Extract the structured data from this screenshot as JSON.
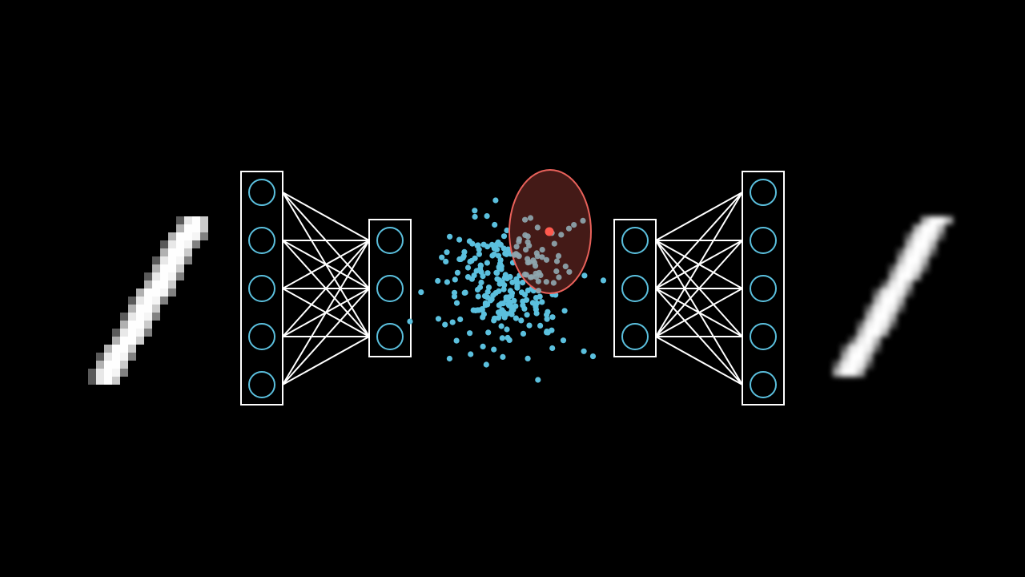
{
  "colors": {
    "background": "#000000",
    "outline": "#ffffff",
    "neuron": "#5bc0de",
    "latent_point": "#5bc0de",
    "sample_point": "#ff5a4e",
    "ellipse_fill": "#4a1c19",
    "ellipse_stroke": "#e8615a"
  },
  "diagram": {
    "kind": "variational-autoencoder",
    "encoder": {
      "layers": [
        5,
        3
      ]
    },
    "decoder": {
      "layers": [
        3,
        5
      ]
    },
    "connectivity": "fully-connected",
    "latent_point_count": 260,
    "input_image": "handwritten-digit-one",
    "output_image": "reconstructed-digit-one"
  }
}
